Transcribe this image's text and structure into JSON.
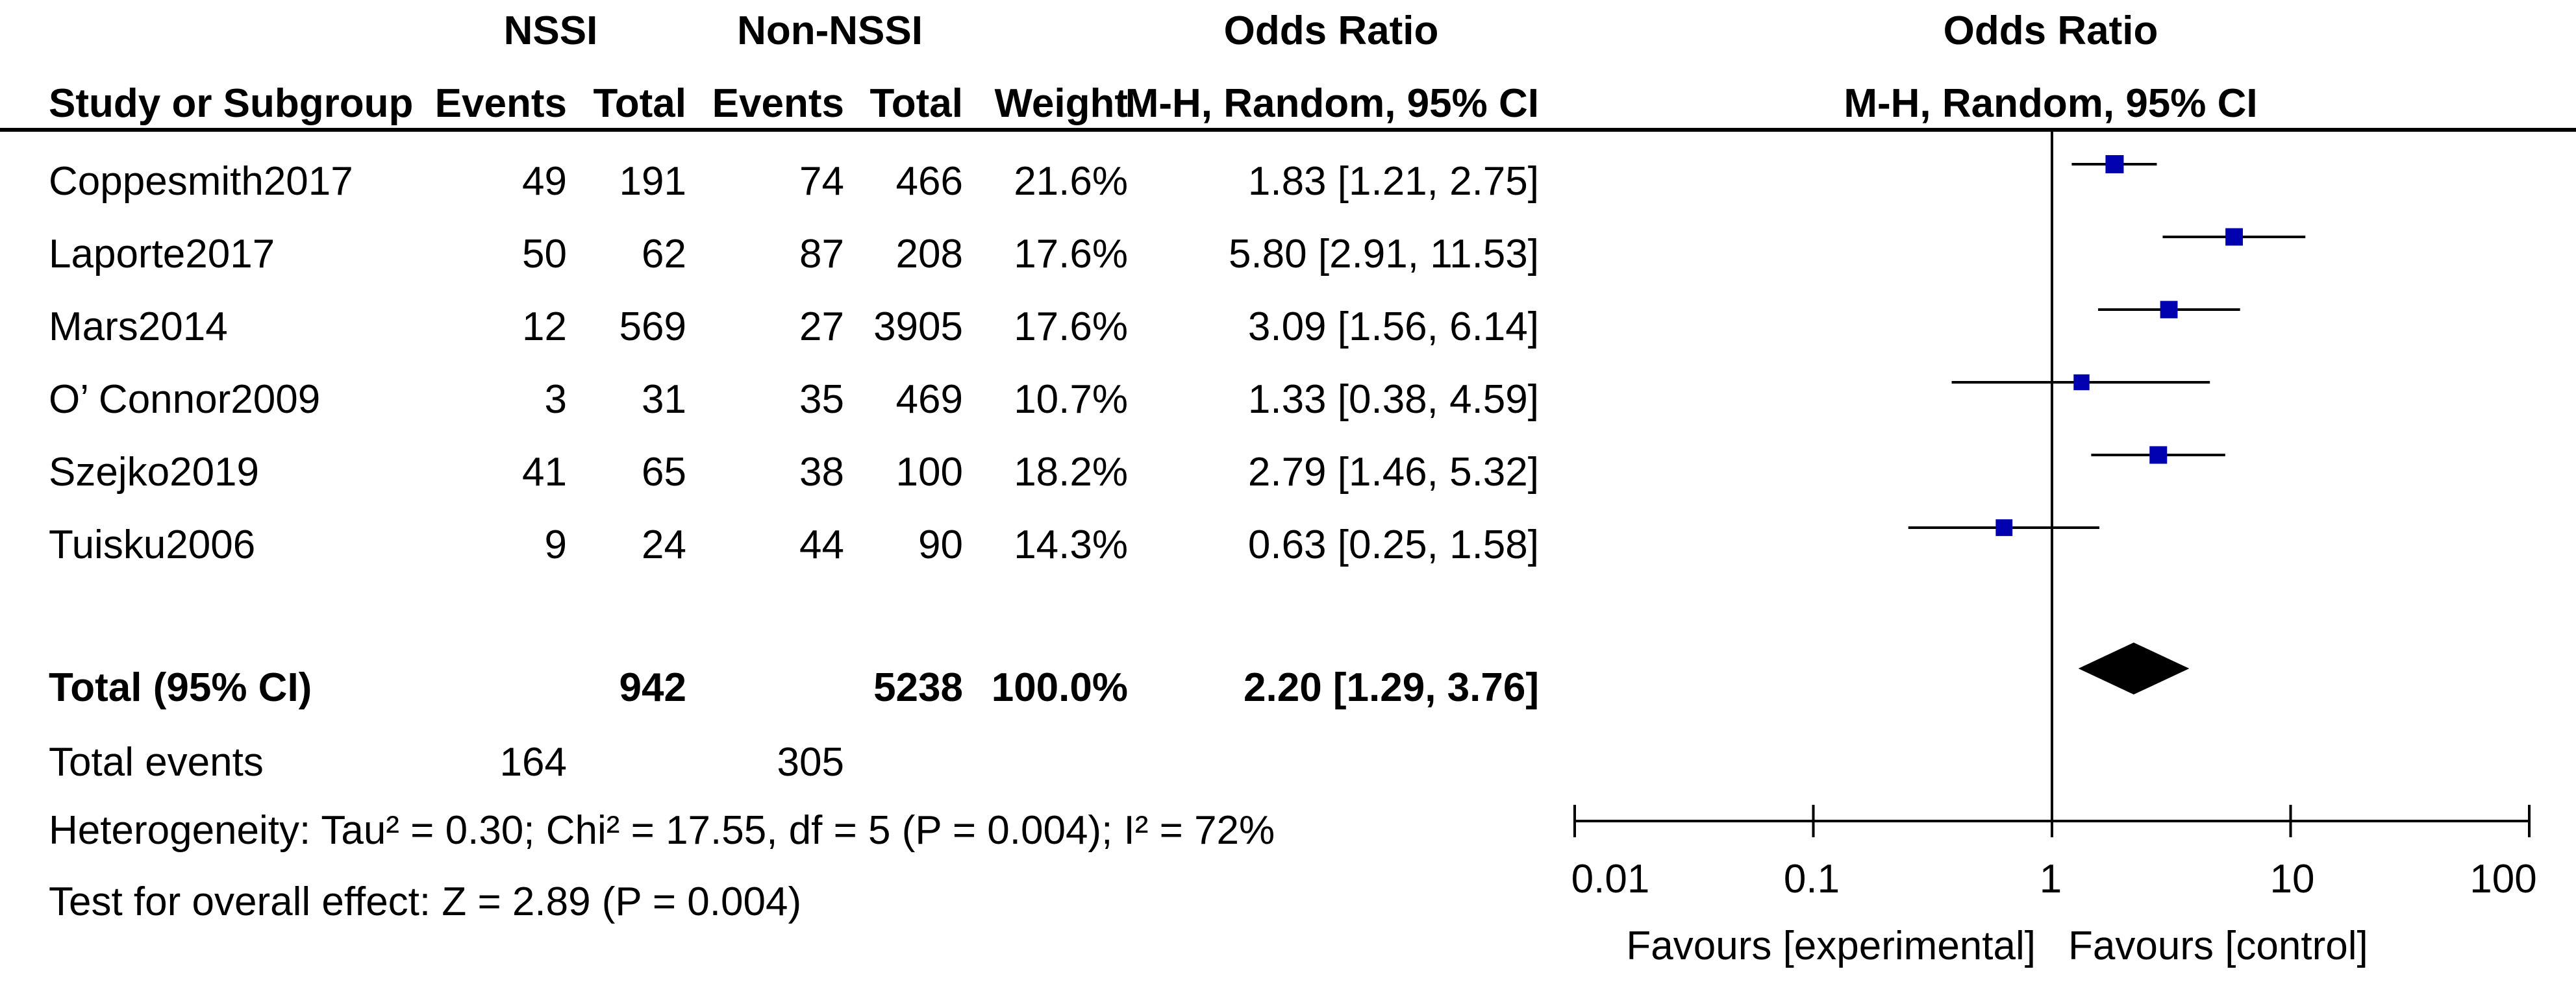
{
  "header": {
    "group1": "NSSI",
    "group2": "Non-NSSI",
    "or_title_left": "Odds Ratio",
    "or_title_right": "Odds Ratio",
    "col_study": "Study or Subgroup",
    "col_events1": "Events",
    "col_total1": "Total",
    "col_events2": "Events",
    "col_total2": "Total",
    "col_weight": "Weight",
    "col_method_left": "M-H, Random, 95% CI",
    "col_method_right": "M-H, Random, 95% CI"
  },
  "studies": [
    {
      "name": "Coppesmith2017",
      "events1": "49",
      "total1": "191",
      "events2": "74",
      "total2": "466",
      "weight": "21.6%",
      "or_text": "1.83 [1.21, 2.75]"
    },
    {
      "name": "Laporte2017",
      "events1": "50",
      "total1": "62",
      "events2": "87",
      "total2": "208",
      "weight": "17.6%",
      "or_text": "5.80 [2.91, 11.53]"
    },
    {
      "name": "Mars2014",
      "events1": "12",
      "total1": "569",
      "events2": "27",
      "total2": "3905",
      "weight": "17.6%",
      "or_text": "3.09 [1.56, 6.14]"
    },
    {
      "name": "O’ Connor2009",
      "events1": "3",
      "total1": "31",
      "events2": "35",
      "total2": "469",
      "weight": "10.7%",
      "or_text": "1.33 [0.38, 4.59]"
    },
    {
      "name": "Szejko2019",
      "events1": "41",
      "total1": "65",
      "events2": "38",
      "total2": "100",
      "weight": "18.2%",
      "or_text": "2.79 [1.46, 5.32]"
    },
    {
      "name": "Tuisku2006",
      "events1": "9",
      "total1": "24",
      "events2": "44",
      "total2": "90",
      "weight": "14.3%",
      "or_text": "0.63 [0.25, 1.58]"
    }
  ],
  "total": {
    "label": "Total (95% CI)",
    "total1": "942",
    "total2": "5238",
    "weight": "100.0%",
    "or_text": "2.20 [1.29, 3.76]"
  },
  "total_events": {
    "label": "Total events",
    "events1": "164",
    "events2": "305"
  },
  "heterogeneity": "Heterogeneity: Tau² = 0.30; Chi² = 17.55, df = 5 (P = 0.004); I² = 72%",
  "overall_effect": "Test for overall effect: Z = 2.89 (P = 0.004)",
  "axis": {
    "ticks": [
      "0.01",
      "0.1",
      "1",
      "10",
      "100"
    ],
    "favours_left": "Favours [experimental]",
    "favours_right": "Favours [control]"
  },
  "colors": {
    "marker": "#0000ae",
    "diamond": "#000000",
    "line": "#000000"
  },
  "chart_data": {
    "type": "forest",
    "scale": "log",
    "xlim": [
      0.01,
      100
    ],
    "null_line": 1,
    "studies": [
      {
        "name": "Coppesmith2017",
        "or": 1.83,
        "lo": 1.21,
        "hi": 2.75,
        "weight": 21.6
      },
      {
        "name": "Laporte2017",
        "or": 5.8,
        "lo": 2.91,
        "hi": 11.53,
        "weight": 17.6
      },
      {
        "name": "Mars2014",
        "or": 3.09,
        "lo": 1.56,
        "hi": 6.14,
        "weight": 17.6
      },
      {
        "name": "O’ Connor2009",
        "or": 1.33,
        "lo": 0.38,
        "hi": 4.59,
        "weight": 10.7
      },
      {
        "name": "Szejko2019",
        "or": 2.79,
        "lo": 1.46,
        "hi": 5.32,
        "weight": 18.2
      },
      {
        "name": "Tuisku2006",
        "or": 0.63,
        "lo": 0.25,
        "hi": 1.58,
        "weight": 14.3
      }
    ],
    "pooled": {
      "or": 2.2,
      "lo": 1.29,
      "hi": 3.76
    }
  }
}
